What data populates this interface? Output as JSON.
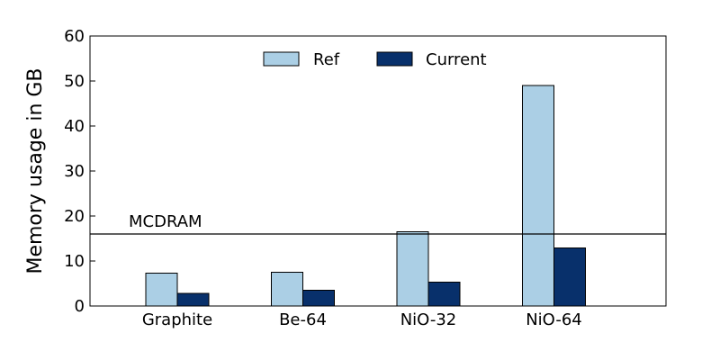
{
  "chart_data": {
    "type": "bar",
    "categories": [
      "Graphite",
      "Be-64",
      "NiO-32",
      "NiO-64"
    ],
    "series": [
      {
        "name": "Ref",
        "values": [
          7.3,
          7.5,
          16.5,
          49.0
        ],
        "color": "#abcfe5"
      },
      {
        "name": "Current",
        "values": [
          2.8,
          3.5,
          5.3,
          12.9
        ],
        "color": "#08306b"
      }
    ],
    "ylabel": "Memory usage in GB",
    "ylim": [
      0,
      60
    ],
    "yticks": [
      0,
      10,
      20,
      30,
      40,
      50,
      60
    ],
    "legend_position": "top-center",
    "grid": false,
    "reference_line": {
      "label": "MCDRAM",
      "value": 16
    }
  }
}
